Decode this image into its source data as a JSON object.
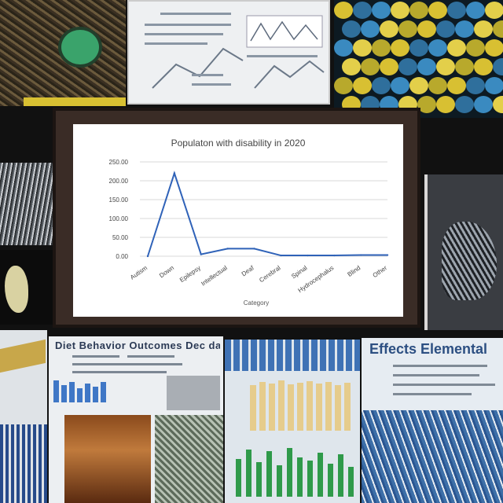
{
  "chart_data": {
    "type": "line",
    "title": "Populaton with disability in 2020",
    "xlabel": "Category",
    "ylabel": "",
    "categories": [
      "Autism",
      "Down",
      "Epilepsy",
      "Intellectual",
      "Deaf",
      "Cerebral",
      "Spinal",
      "Hydrocephalus",
      "Blind",
      "Other"
    ],
    "y_ticks": [
      "0.00",
      "50.00",
      "100.00",
      "150.00",
      "200.00",
      "250.00"
    ],
    "ylim": [
      0,
      250
    ],
    "grid": true,
    "legend": "none",
    "series": [
      {
        "values": [
          0,
          220,
          5,
          20,
          20,
          2,
          2,
          2,
          3,
          3
        ]
      }
    ],
    "line_color": "#2f62b8"
  },
  "collage": {
    "left_headline": "Diet Behavior Outcomes Dec data",
    "right_headline": "Effects Elemental",
    "colors": {
      "moss": "#3aa36b",
      "bead_yellow": "#d8c032",
      "bead_blue": "#3a8ac0"
    }
  }
}
